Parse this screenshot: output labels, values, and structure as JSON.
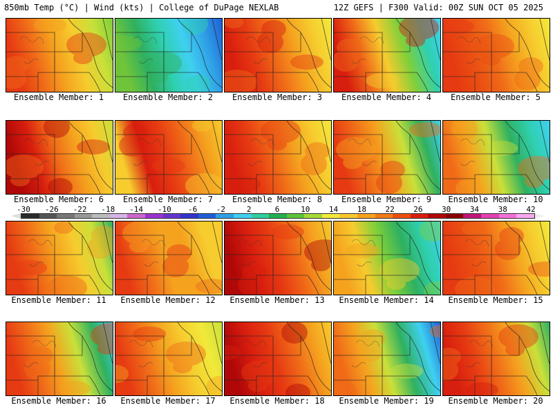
{
  "header": {
    "left": "850mb Temp (°C) | Wind (kts) | College of DuPage NEXLAB",
    "right": "12Z GEFS | F300 Valid: 00Z SUN OCT 05 2025"
  },
  "colorbar": {
    "labels": [
      "-30",
      "-26",
      "-22",
      "-18",
      "-14",
      "-10",
      "-6",
      "-2",
      "2",
      "6",
      "10",
      "14",
      "18",
      "22",
      "26",
      "30",
      "34",
      "38",
      "42"
    ],
    "colors": [
      "#2b2b2b",
      "#555555",
      "#777777",
      "#999999",
      "#bbbbbb",
      "#d6b3e6",
      "#cc66cc",
      "#9933cc",
      "#6633cc",
      "#3333cc",
      "#1f5fd6",
      "#2f9fe6",
      "#3fd0f0",
      "#2fd0a0",
      "#22b050",
      "#5cc23a",
      "#a6d93a",
      "#f2e93a",
      "#f7c72e",
      "#f7a21f",
      "#f27b17",
      "#ea4f12",
      "#d81e0e",
      "#b00808",
      "#8a0000",
      "#c0147a",
      "#e040b0",
      "#f070d8",
      "#f7a6ec"
    ]
  },
  "panels": [
    {
      "label": "Ensemble Member: 1",
      "colors": [
        "#e63a12",
        "#f06a18",
        "#f5a21f",
        "#f6cc2e",
        "#c9e03a",
        "#7fcf3a"
      ]
    },
    {
      "label": "Ensemble Member: 2",
      "colors": [
        "#6fc43a",
        "#2fb060",
        "#2fd0b0",
        "#3fd0f0",
        "#2f9fe6",
        "#1f5fd6"
      ]
    },
    {
      "label": "Ensemble Member: 3",
      "colors": [
        "#d81e0e",
        "#e63a12",
        "#f06a18",
        "#f5a21f",
        "#f6cc2e",
        "#f2e93a"
      ]
    },
    {
      "label": "Ensemble Member: 4",
      "colors": [
        "#d81e0e",
        "#f06a18",
        "#f6cc2e",
        "#7fcf3a",
        "#2fd0b0",
        "#3fd0f0"
      ]
    },
    {
      "label": "Ensemble Member: 5",
      "colors": [
        "#e63a12",
        "#ea4f12",
        "#f06a18",
        "#f5a21f",
        "#f6cc2e",
        "#f2e93a"
      ]
    },
    {
      "label": "Ensemble Member: 6",
      "colors": [
        "#b00808",
        "#d81e0e",
        "#f06a18",
        "#f5a21f",
        "#f6cc2e",
        "#c9e03a"
      ]
    },
    {
      "label": "Ensemble Member: 7",
      "colors": [
        "#f6cc2e",
        "#d81e0e",
        "#e63a12",
        "#f06a18",
        "#f5a21f",
        "#f6cc2e"
      ]
    },
    {
      "label": "Ensemble Member: 8",
      "colors": [
        "#d81e0e",
        "#e63a12",
        "#f06a18",
        "#f5a21f",
        "#f6cc2e",
        "#f2e93a"
      ]
    },
    {
      "label": "Ensemble Member: 9",
      "colors": [
        "#e63a12",
        "#f06a18",
        "#f5a21f",
        "#c9e03a",
        "#2fb060",
        "#3fd0f0"
      ]
    },
    {
      "label": "Ensemble Member: 10",
      "colors": [
        "#f06a18",
        "#f5a21f",
        "#c9e03a",
        "#2fb060",
        "#2fd0b0",
        "#3fd0f0"
      ]
    },
    {
      "label": "Ensemble Member: 11",
      "colors": [
        "#e63a12",
        "#f06a18",
        "#f5a21f",
        "#f6cc2e",
        "#c9e03a",
        "#2fb060"
      ]
    },
    {
      "label": "Ensemble Member: 12",
      "colors": [
        "#e63a12",
        "#f06a18",
        "#f5a21f",
        "#f5a21f",
        "#f6cc2e",
        "#f6cc2e"
      ]
    },
    {
      "label": "Ensemble Member: 13",
      "colors": [
        "#b00808",
        "#d81e0e",
        "#e63a12",
        "#f06a18",
        "#f5a21f",
        "#f6cc2e"
      ]
    },
    {
      "label": "Ensemble Member: 14",
      "colors": [
        "#f5a21f",
        "#f6cc2e",
        "#7fcf3a",
        "#2fb060",
        "#2fd0b0",
        "#3fd0f0"
      ]
    },
    {
      "label": "Ensemble Member: 15",
      "colors": [
        "#e63a12",
        "#ea4f12",
        "#f06a18",
        "#f5a21f",
        "#f6cc2e",
        "#f2e93a"
      ]
    },
    {
      "label": "Ensemble Member: 16",
      "colors": [
        "#e63a12",
        "#f06a18",
        "#f5a21f",
        "#c9e03a",
        "#2fb060",
        "#3fd0f0"
      ]
    },
    {
      "label": "Ensemble Member: 17",
      "colors": [
        "#e63a12",
        "#f06a18",
        "#f5a21f",
        "#f6cc2e",
        "#f2e93a",
        "#c9e03a"
      ]
    },
    {
      "label": "Ensemble Member: 18",
      "colors": [
        "#b00808",
        "#d81e0e",
        "#e63a12",
        "#f06a18",
        "#f5a21f",
        "#f6cc2e"
      ]
    },
    {
      "label": "Ensemble Member: 19",
      "colors": [
        "#f06a18",
        "#f5a21f",
        "#c9e03a",
        "#2fb060",
        "#3fd0f0",
        "#1f5fd6"
      ]
    },
    {
      "label": "Ensemble Member: 20",
      "colors": [
        "#d81e0e",
        "#e63a12",
        "#f06a18",
        "#f5a21f",
        "#c9e03a",
        "#2fb060"
      ]
    }
  ]
}
